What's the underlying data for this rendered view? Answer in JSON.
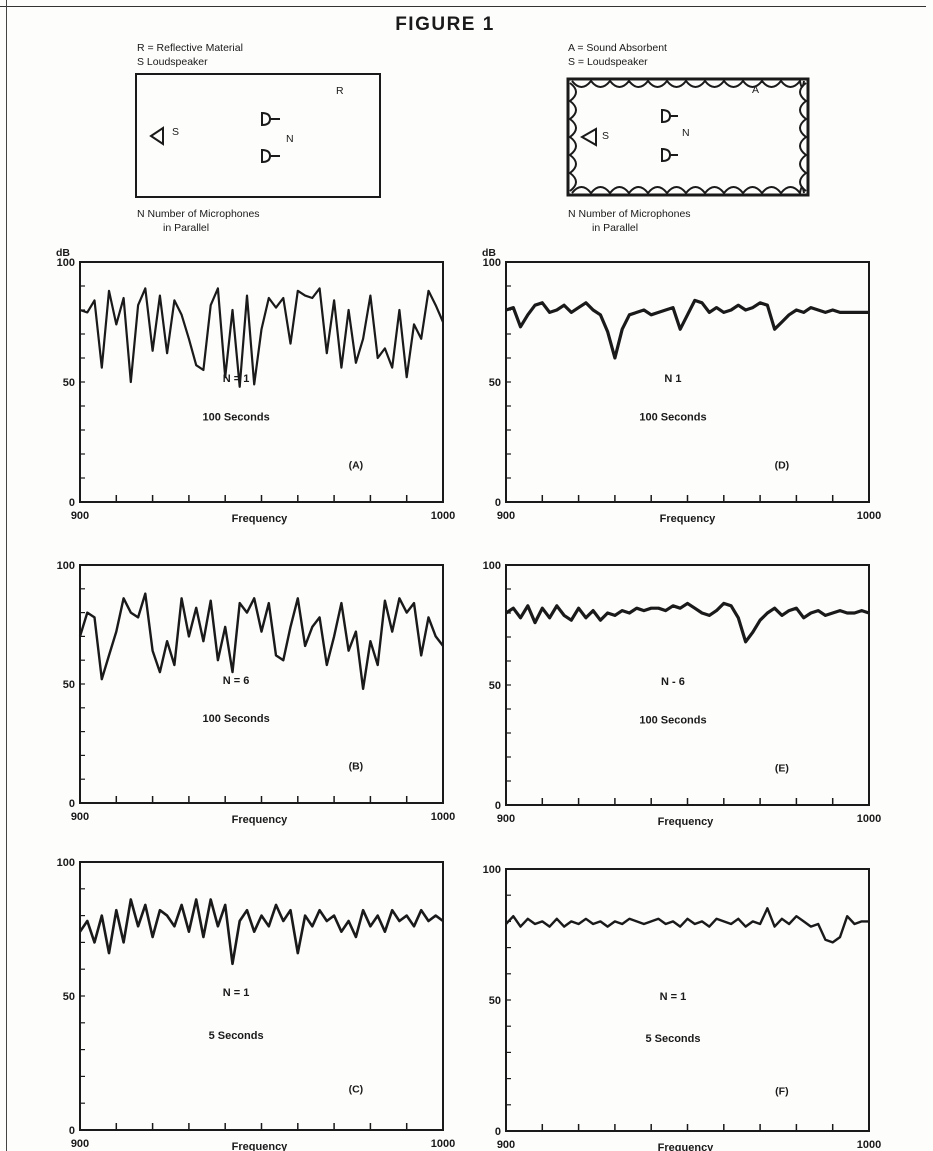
{
  "figure_title": "FIGURE 1",
  "left_diagram": {
    "legend": [
      "R = Reflective Material",
      "S   Loudspeaker"
    ],
    "label_R": "R",
    "label_S": "S",
    "label_N": "N",
    "note_line1": "N    Number of Microphones",
    "note_line2": "in Parallel"
  },
  "right_diagram": {
    "legend": [
      "A = Sound Absorbent",
      "S = Loudspeaker"
    ],
    "label_A": "A",
    "label_S": "S",
    "label_N": "N",
    "note_line1": "N    Number of Microphones",
    "note_line2": "in Parallel"
  },
  "colors": {
    "ink": "#1a1a1a",
    "paper": "#fdfdfc"
  },
  "chart_data": [
    {
      "id": "A",
      "type": "line",
      "xlabel": "Frequency",
      "ylabel": "dB",
      "xlim": [
        900,
        1000
      ],
      "ylim": [
        0,
        100
      ],
      "yticks": [
        0,
        50,
        100
      ],
      "xticks": [
        900,
        1000
      ],
      "annotation": [
        "N = 1",
        "100 Seconds"
      ],
      "panel_label": "(A)",
      "x": [
        900,
        902,
        904,
        906,
        908,
        910,
        912,
        914,
        916,
        918,
        920,
        922,
        924,
        926,
        928,
        930,
        932,
        934,
        936,
        938,
        940,
        942,
        944,
        946,
        948,
        950,
        952,
        954,
        956,
        958,
        960,
        962,
        964,
        966,
        968,
        970,
        972,
        974,
        976,
        978,
        980,
        982,
        984,
        986,
        988,
        990,
        992,
        994,
        996,
        998,
        1000
      ],
      "values": [
        80,
        79,
        84,
        56,
        88,
        74,
        85,
        50,
        82,
        89,
        63,
        86,
        62,
        84,
        78,
        68,
        57,
        55,
        82,
        89,
        52,
        80,
        48,
        86,
        49,
        72,
        85,
        81,
        85,
        66,
        88,
        86,
        85,
        89,
        62,
        84,
        56,
        80,
        58,
        68,
        86,
        60,
        64,
        56,
        80,
        52,
        74,
        68,
        88,
        82,
        75
      ]
    },
    {
      "id": "B",
      "type": "line",
      "xlabel": "Frequency",
      "xlim": [
        900,
        1000
      ],
      "ylim": [
        0,
        100
      ],
      "yticks": [
        0,
        50,
        100
      ],
      "xticks": [
        900,
        1000
      ],
      "annotation": [
        "N = 6",
        "100 Seconds"
      ],
      "panel_label": "(B)",
      "x": [
        900,
        902,
        904,
        906,
        908,
        910,
        912,
        914,
        916,
        918,
        920,
        922,
        924,
        926,
        928,
        930,
        932,
        934,
        936,
        938,
        940,
        942,
        944,
        946,
        948,
        950,
        952,
        954,
        956,
        958,
        960,
        962,
        964,
        966,
        968,
        970,
        972,
        974,
        976,
        978,
        980,
        982,
        984,
        986,
        988,
        990,
        992,
        994,
        996,
        998,
        1000
      ],
      "values": [
        70,
        80,
        78,
        52,
        62,
        72,
        86,
        80,
        78,
        88,
        64,
        55,
        68,
        58,
        86,
        70,
        82,
        68,
        85,
        60,
        74,
        55,
        84,
        80,
        86,
        72,
        84,
        62,
        60,
        74,
        86,
        66,
        74,
        78,
        58,
        70,
        84,
        64,
        72,
        48,
        68,
        58,
        85,
        72,
        86,
        80,
        84,
        62,
        78,
        70,
        66
      ]
    },
    {
      "id": "C",
      "type": "line",
      "xlabel": "Frequency",
      "xlim": [
        900,
        1000
      ],
      "ylim": [
        0,
        100
      ],
      "yticks": [
        0,
        50,
        100
      ],
      "xticks": [
        900,
        1000
      ],
      "annotation": [
        "N = 1",
        "5 Seconds"
      ],
      "panel_label": "(C)",
      "x": [
        900,
        902,
        904,
        906,
        908,
        910,
        912,
        914,
        916,
        918,
        920,
        922,
        924,
        926,
        928,
        930,
        932,
        934,
        936,
        938,
        940,
        942,
        944,
        946,
        948,
        950,
        952,
        954,
        956,
        958,
        960,
        962,
        964,
        966,
        968,
        970,
        972,
        974,
        976,
        978,
        980,
        982,
        984,
        986,
        988,
        990,
        992,
        994,
        996,
        998,
        1000
      ],
      "values": [
        74,
        78,
        70,
        80,
        66,
        82,
        70,
        86,
        76,
        84,
        72,
        82,
        80,
        76,
        84,
        74,
        86,
        72,
        86,
        76,
        84,
        62,
        78,
        82,
        74,
        80,
        76,
        84,
        78,
        82,
        66,
        80,
        76,
        82,
        78,
        80,
        74,
        78,
        72,
        82,
        76,
        80,
        74,
        82,
        78,
        80,
        76,
        82,
        78,
        80,
        78
      ]
    },
    {
      "id": "D",
      "type": "line",
      "xlabel": "Frequency",
      "ylabel": "dB",
      "xlim": [
        900,
        1000
      ],
      "ylim": [
        0,
        100
      ],
      "yticks": [
        0,
        50,
        100
      ],
      "xticks": [
        900,
        1000
      ],
      "annotation": [
        "N   1",
        "100 Seconds"
      ],
      "panel_label": "(D)",
      "x": [
        900,
        902,
        904,
        906,
        908,
        910,
        912,
        914,
        916,
        918,
        920,
        922,
        924,
        926,
        928,
        930,
        932,
        934,
        936,
        938,
        940,
        942,
        944,
        946,
        948,
        950,
        952,
        954,
        956,
        958,
        960,
        962,
        964,
        966,
        968,
        970,
        972,
        974,
        976,
        978,
        980,
        982,
        984,
        986,
        988,
        990,
        992,
        994,
        996,
        998,
        1000
      ],
      "values": [
        80,
        81,
        73,
        78,
        82,
        83,
        79,
        80,
        82,
        79,
        81,
        83,
        80,
        78,
        71,
        60,
        72,
        78,
        79,
        80,
        78,
        79,
        80,
        81,
        72,
        78,
        84,
        83,
        79,
        81,
        79,
        80,
        82,
        80,
        81,
        83,
        82,
        72,
        75,
        78,
        80,
        79,
        81,
        80,
        79,
        80,
        79,
        79,
        79,
        79,
        79
      ]
    },
    {
      "id": "E",
      "type": "line",
      "xlabel": "Frequency",
      "xlim": [
        900,
        1000
      ],
      "ylim": [
        0,
        100
      ],
      "yticks": [
        0,
        50,
        100
      ],
      "xticks": [
        900,
        1000
      ],
      "annotation": [
        "N - 6",
        "100 Seconds"
      ],
      "panel_label": "(E)",
      "x": [
        900,
        902,
        904,
        906,
        908,
        910,
        912,
        914,
        916,
        918,
        920,
        922,
        924,
        926,
        928,
        930,
        932,
        934,
        936,
        938,
        940,
        942,
        944,
        946,
        948,
        950,
        952,
        954,
        956,
        958,
        960,
        962,
        964,
        966,
        968,
        970,
        972,
        974,
        976,
        978,
        980,
        982,
        984,
        986,
        988,
        990,
        992,
        994,
        996,
        998,
        1000
      ],
      "values": [
        80,
        82,
        78,
        83,
        76,
        82,
        78,
        83,
        79,
        77,
        82,
        78,
        81,
        77,
        80,
        79,
        81,
        80,
        82,
        81,
        82,
        82,
        81,
        83,
        82,
        84,
        82,
        80,
        79,
        81,
        84,
        83,
        78,
        68,
        72,
        77,
        80,
        82,
        79,
        81,
        82,
        78,
        80,
        81,
        79,
        80,
        81,
        80,
        80,
        81,
        80
      ]
    },
    {
      "id": "F",
      "type": "line",
      "xlabel": "Frequency",
      "xlim": [
        900,
        1000
      ],
      "ylim": [
        0,
        100
      ],
      "yticks": [
        0,
        50,
        100
      ],
      "xticks": [
        900,
        1000
      ],
      "annotation": [
        "N = 1",
        "5 Seconds"
      ],
      "panel_label": "(F)",
      "x": [
        900,
        902,
        904,
        906,
        908,
        910,
        912,
        914,
        916,
        918,
        920,
        922,
        924,
        926,
        928,
        930,
        932,
        934,
        936,
        938,
        940,
        942,
        944,
        946,
        948,
        950,
        952,
        954,
        956,
        958,
        960,
        962,
        964,
        966,
        968,
        970,
        972,
        974,
        976,
        978,
        980,
        982,
        984,
        986,
        988,
        990,
        992,
        994,
        996,
        998,
        1000
      ],
      "values": [
        79,
        82,
        78,
        81,
        79,
        80,
        78,
        81,
        78,
        80,
        79,
        81,
        79,
        80,
        78,
        80,
        79,
        81,
        80,
        79,
        80,
        81,
        79,
        80,
        78,
        81,
        79,
        80,
        78,
        81,
        80,
        79,
        81,
        78,
        80,
        79,
        85,
        78,
        81,
        79,
        82,
        80,
        78,
        79,
        73,
        72,
        74,
        82,
        79,
        80,
        80
      ]
    }
  ]
}
